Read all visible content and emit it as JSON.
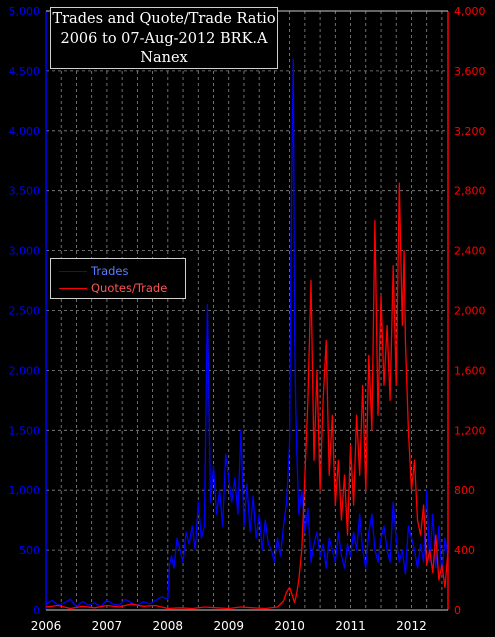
{
  "title": {
    "line1": "Trades and Quote/Trade Ratio",
    "line2": "2006 to 07-Aug-2012 BRK.A",
    "line3": "Nanex"
  },
  "legend": [
    {
      "name": "Trades",
      "color": "#0000ff"
    },
    {
      "name": "Quotes/Trade",
      "color": "#ff0000"
    }
  ],
  "chart_data": {
    "type": "line",
    "title": "Trades and Quote/Trade Ratio 2006 to 07-Aug-2012 BRK.A Nanex",
    "background": "#000000",
    "grid": true,
    "legend_position": "middle-left",
    "x_ticks": [
      "2006",
      "2007",
      "2008",
      "2009",
      "2010",
      "2011",
      "2012"
    ],
    "x_range": [
      2006.0,
      2012.6
    ],
    "y_left": {
      "range": [
        0,
        5000
      ],
      "ticks": [
        "0",
        "500",
        "1,000",
        "1,500",
        "2,000",
        "2,500",
        "3,000",
        "3,500",
        "4,000",
        "4,500",
        "5,000"
      ],
      "color": "#0000ff"
    },
    "y_right": {
      "range": [
        0,
        4000
      ],
      "ticks": [
        "0",
        "400",
        "800",
        "1,200",
        "1,600",
        "2,000",
        "2,400",
        "2,800",
        "3,200",
        "3,600",
        "4,000"
      ],
      "color": "#ff0000"
    },
    "series": [
      {
        "name": "Trades",
        "axis": "left",
        "color": "#0000ff",
        "x": [
          2006.0,
          2006.1,
          2006.2,
          2006.3,
          2006.4,
          2006.5,
          2006.6,
          2006.7,
          2006.8,
          2006.9,
          2007.0,
          2007.1,
          2007.2,
          2007.3,
          2007.4,
          2007.5,
          2007.6,
          2007.7,
          2007.8,
          2007.9,
          2008.0,
          2008.03,
          2008.06,
          2008.1,
          2008.15,
          2008.2,
          2008.25,
          2008.3,
          2008.35,
          2008.4,
          2008.45,
          2008.5,
          2008.55,
          2008.6,
          2008.65,
          2008.7,
          2008.75,
          2008.8,
          2008.85,
          2008.9,
          2008.95,
          2009.0,
          2009.05,
          2009.1,
          2009.15,
          2009.2,
          2009.25,
          2009.3,
          2009.35,
          2009.4,
          2009.45,
          2009.5,
          2009.55,
          2009.6,
          2009.65,
          2009.7,
          2009.75,
          2009.8,
          2009.85,
          2009.9,
          2009.95,
          2010.0,
          2010.03,
          2010.06,
          2010.08,
          2010.1,
          2010.12,
          2010.15,
          2010.2,
          2010.25,
          2010.3,
          2010.35,
          2010.4,
          2010.45,
          2010.5,
          2010.55,
          2010.6,
          2010.65,
          2010.7,
          2010.75,
          2010.8,
          2010.85,
          2010.9,
          2010.95,
          2011.0,
          2011.05,
          2011.1,
          2011.15,
          2011.2,
          2011.25,
          2011.3,
          2011.35,
          2011.4,
          2011.45,
          2011.5,
          2011.55,
          2011.6,
          2011.65,
          2011.7,
          2011.75,
          2011.8,
          2011.85,
          2011.9,
          2011.95,
          2012.0,
          2012.05,
          2012.1,
          2012.15,
          2012.2,
          2012.25,
          2012.3,
          2012.35,
          2012.4,
          2012.45,
          2012.5,
          2012.55,
          2012.6
        ],
        "y": [
          50,
          80,
          40,
          60,
          90,
          30,
          70,
          40,
          60,
          30,
          80,
          50,
          40,
          90,
          60,
          40,
          70,
          50,
          80,
          110,
          90,
          380,
          450,
          350,
          600,
          500,
          400,
          650,
          550,
          700,
          500,
          900,
          600,
          700,
          2550,
          900,
          1200,
          800,
          1000,
          700,
          1300,
          1100,
          900,
          1100,
          800,
          1500,
          700,
          1050,
          650,
          950,
          600,
          800,
          500,
          750,
          550,
          500,
          400,
          600,
          450,
          700,
          900,
          1400,
          3500,
          4600,
          2400,
          1700,
          1300,
          800,
          1000,
          650,
          850,
          400,
          550,
          650,
          450,
          550,
          350,
          600,
          500,
          400,
          650,
          450,
          350,
          550,
          450,
          650,
          500,
          800,
          500,
          350,
          650,
          800,
          500,
          400,
          600,
          700,
          500,
          400,
          900,
          600,
          400,
          500,
          300,
          700,
          600,
          500,
          350,
          550,
          400,
          1000,
          400,
          800,
          350,
          700,
          300,
          600,
          450
        ]
      },
      {
        "name": "Quotes/Trade",
        "axis": "right",
        "color": "#ff0000",
        "x": [
          2006.0,
          2006.2,
          2006.4,
          2006.6,
          2006.8,
          2007.0,
          2007.2,
          2007.4,
          2007.6,
          2007.8,
          2008.0,
          2008.2,
          2008.4,
          2008.6,
          2008.8,
          2009.0,
          2009.2,
          2009.4,
          2009.6,
          2009.8,
          2009.9,
          2009.95,
          2010.0,
          2010.05,
          2010.08,
          2010.1,
          2010.12,
          2010.15,
          2010.2,
          2010.25,
          2010.3,
          2010.35,
          2010.4,
          2010.45,
          2010.5,
          2010.55,
          2010.6,
          2010.65,
          2010.7,
          2010.75,
          2010.8,
          2010.85,
          2010.9,
          2010.95,
          2011.0,
          2011.05,
          2011.1,
          2011.15,
          2011.2,
          2011.25,
          2011.3,
          2011.35,
          2011.4,
          2011.45,
          2011.5,
          2011.55,
          2011.6,
          2011.65,
          2011.7,
          2011.75,
          2011.8,
          2011.85,
          2011.88,
          2011.9,
          2011.95,
          2012.0,
          2012.05,
          2012.1,
          2012.15,
          2012.2,
          2012.25,
          2012.3,
          2012.35,
          2012.4,
          2012.45,
          2012.5,
          2012.55,
          2012.6
        ],
        "y": [
          20,
          30,
          10,
          25,
          15,
          30,
          20,
          40,
          25,
          30,
          10,
          15,
          10,
          20,
          15,
          10,
          20,
          15,
          10,
          20,
          60,
          120,
          150,
          90,
          50,
          80,
          120,
          200,
          400,
          900,
          1400,
          2200,
          1000,
          1600,
          800,
          1400,
          1800,
          900,
          1300,
          700,
          1000,
          600,
          900,
          500,
          1100,
          700,
          1300,
          900,
          1500,
          800,
          1700,
          1200,
          2600,
          1300,
          2100,
          1500,
          1900,
          1400,
          2300,
          1500,
          2850,
          1900,
          2400,
          1800,
          1200,
          800,
          1000,
          600,
          500,
          700,
          300,
          400,
          250,
          500,
          200,
          300,
          150,
          400
        ]
      }
    ]
  }
}
